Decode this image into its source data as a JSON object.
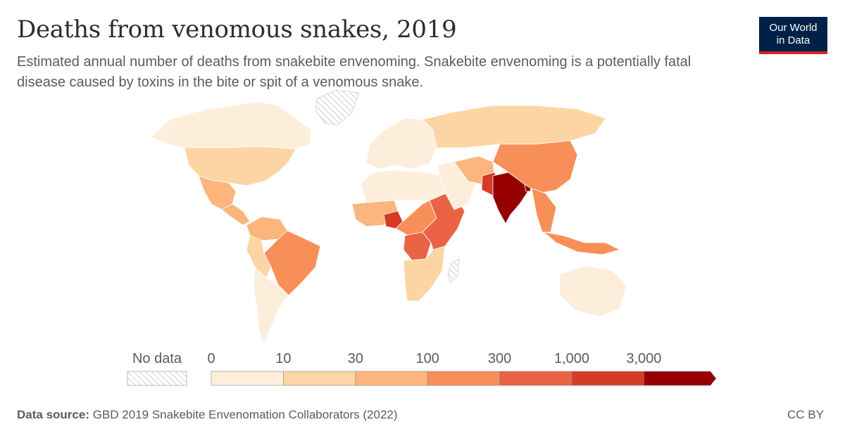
{
  "title": "Deaths from venomous snakes, 2019",
  "subtitle": "Estimated annual number of deaths from snakebite envenoming. Snakebite envenoming is a potentially fatal disease caused by toxins in the bite or spit of a venomous snake.",
  "logo": {
    "line1": "Our World",
    "line2": "in Data"
  },
  "legend": {
    "no_data_label": "No data",
    "ticks": [
      "0",
      "10",
      "30",
      "100",
      "300",
      "1,000",
      "3,000"
    ],
    "colors": [
      "#fdeedc",
      "#fdd5a4",
      "#fcb57c",
      "#f98f58",
      "#ea6344",
      "#d63b27",
      "#960000"
    ],
    "no_data_hatch": "#d9d9d9"
  },
  "map_regions": [
    {
      "name": "Canada",
      "bin": 0
    },
    {
      "name": "Greenland",
      "bin": -1
    },
    {
      "name": "United States",
      "bin": 1
    },
    {
      "name": "Mexico",
      "bin": 2
    },
    {
      "name": "Central America",
      "bin": 2
    },
    {
      "name": "Colombia / Venezuela",
      "bin": 2
    },
    {
      "name": "Brazil",
      "bin": 3
    },
    {
      "name": "Peru / Bolivia",
      "bin": 1
    },
    {
      "name": "Southern South America",
      "bin": 0
    },
    {
      "name": "Europe",
      "bin": 0
    },
    {
      "name": "Russia",
      "bin": 1
    },
    {
      "name": "North Africa",
      "bin": 0
    },
    {
      "name": "West Africa",
      "bin": 2
    },
    {
      "name": "Nigeria",
      "bin": 5
    },
    {
      "name": "Central Africa",
      "bin": 3
    },
    {
      "name": "DR Congo",
      "bin": 4
    },
    {
      "name": "East Africa",
      "bin": 4
    },
    {
      "name": "Southern Africa",
      "bin": 1
    },
    {
      "name": "Madagascar",
      "bin": -1
    },
    {
      "name": "Middle East",
      "bin": 0
    },
    {
      "name": "Iran / Afghanistan",
      "bin": 2
    },
    {
      "name": "Pakistan",
      "bin": 5
    },
    {
      "name": "India",
      "bin": 6
    },
    {
      "name": "Bangladesh",
      "bin": 6
    },
    {
      "name": "China",
      "bin": 3
    },
    {
      "name": "Southeast Asia",
      "bin": 3
    },
    {
      "name": "Indonesia",
      "bin": 3
    },
    {
      "name": "Australia",
      "bin": 0
    }
  ],
  "footer": {
    "source_label": "Data source:",
    "source_text": "GBD 2019 Snakebite Envenomation Collaborators (2022)",
    "license": "CC BY"
  }
}
